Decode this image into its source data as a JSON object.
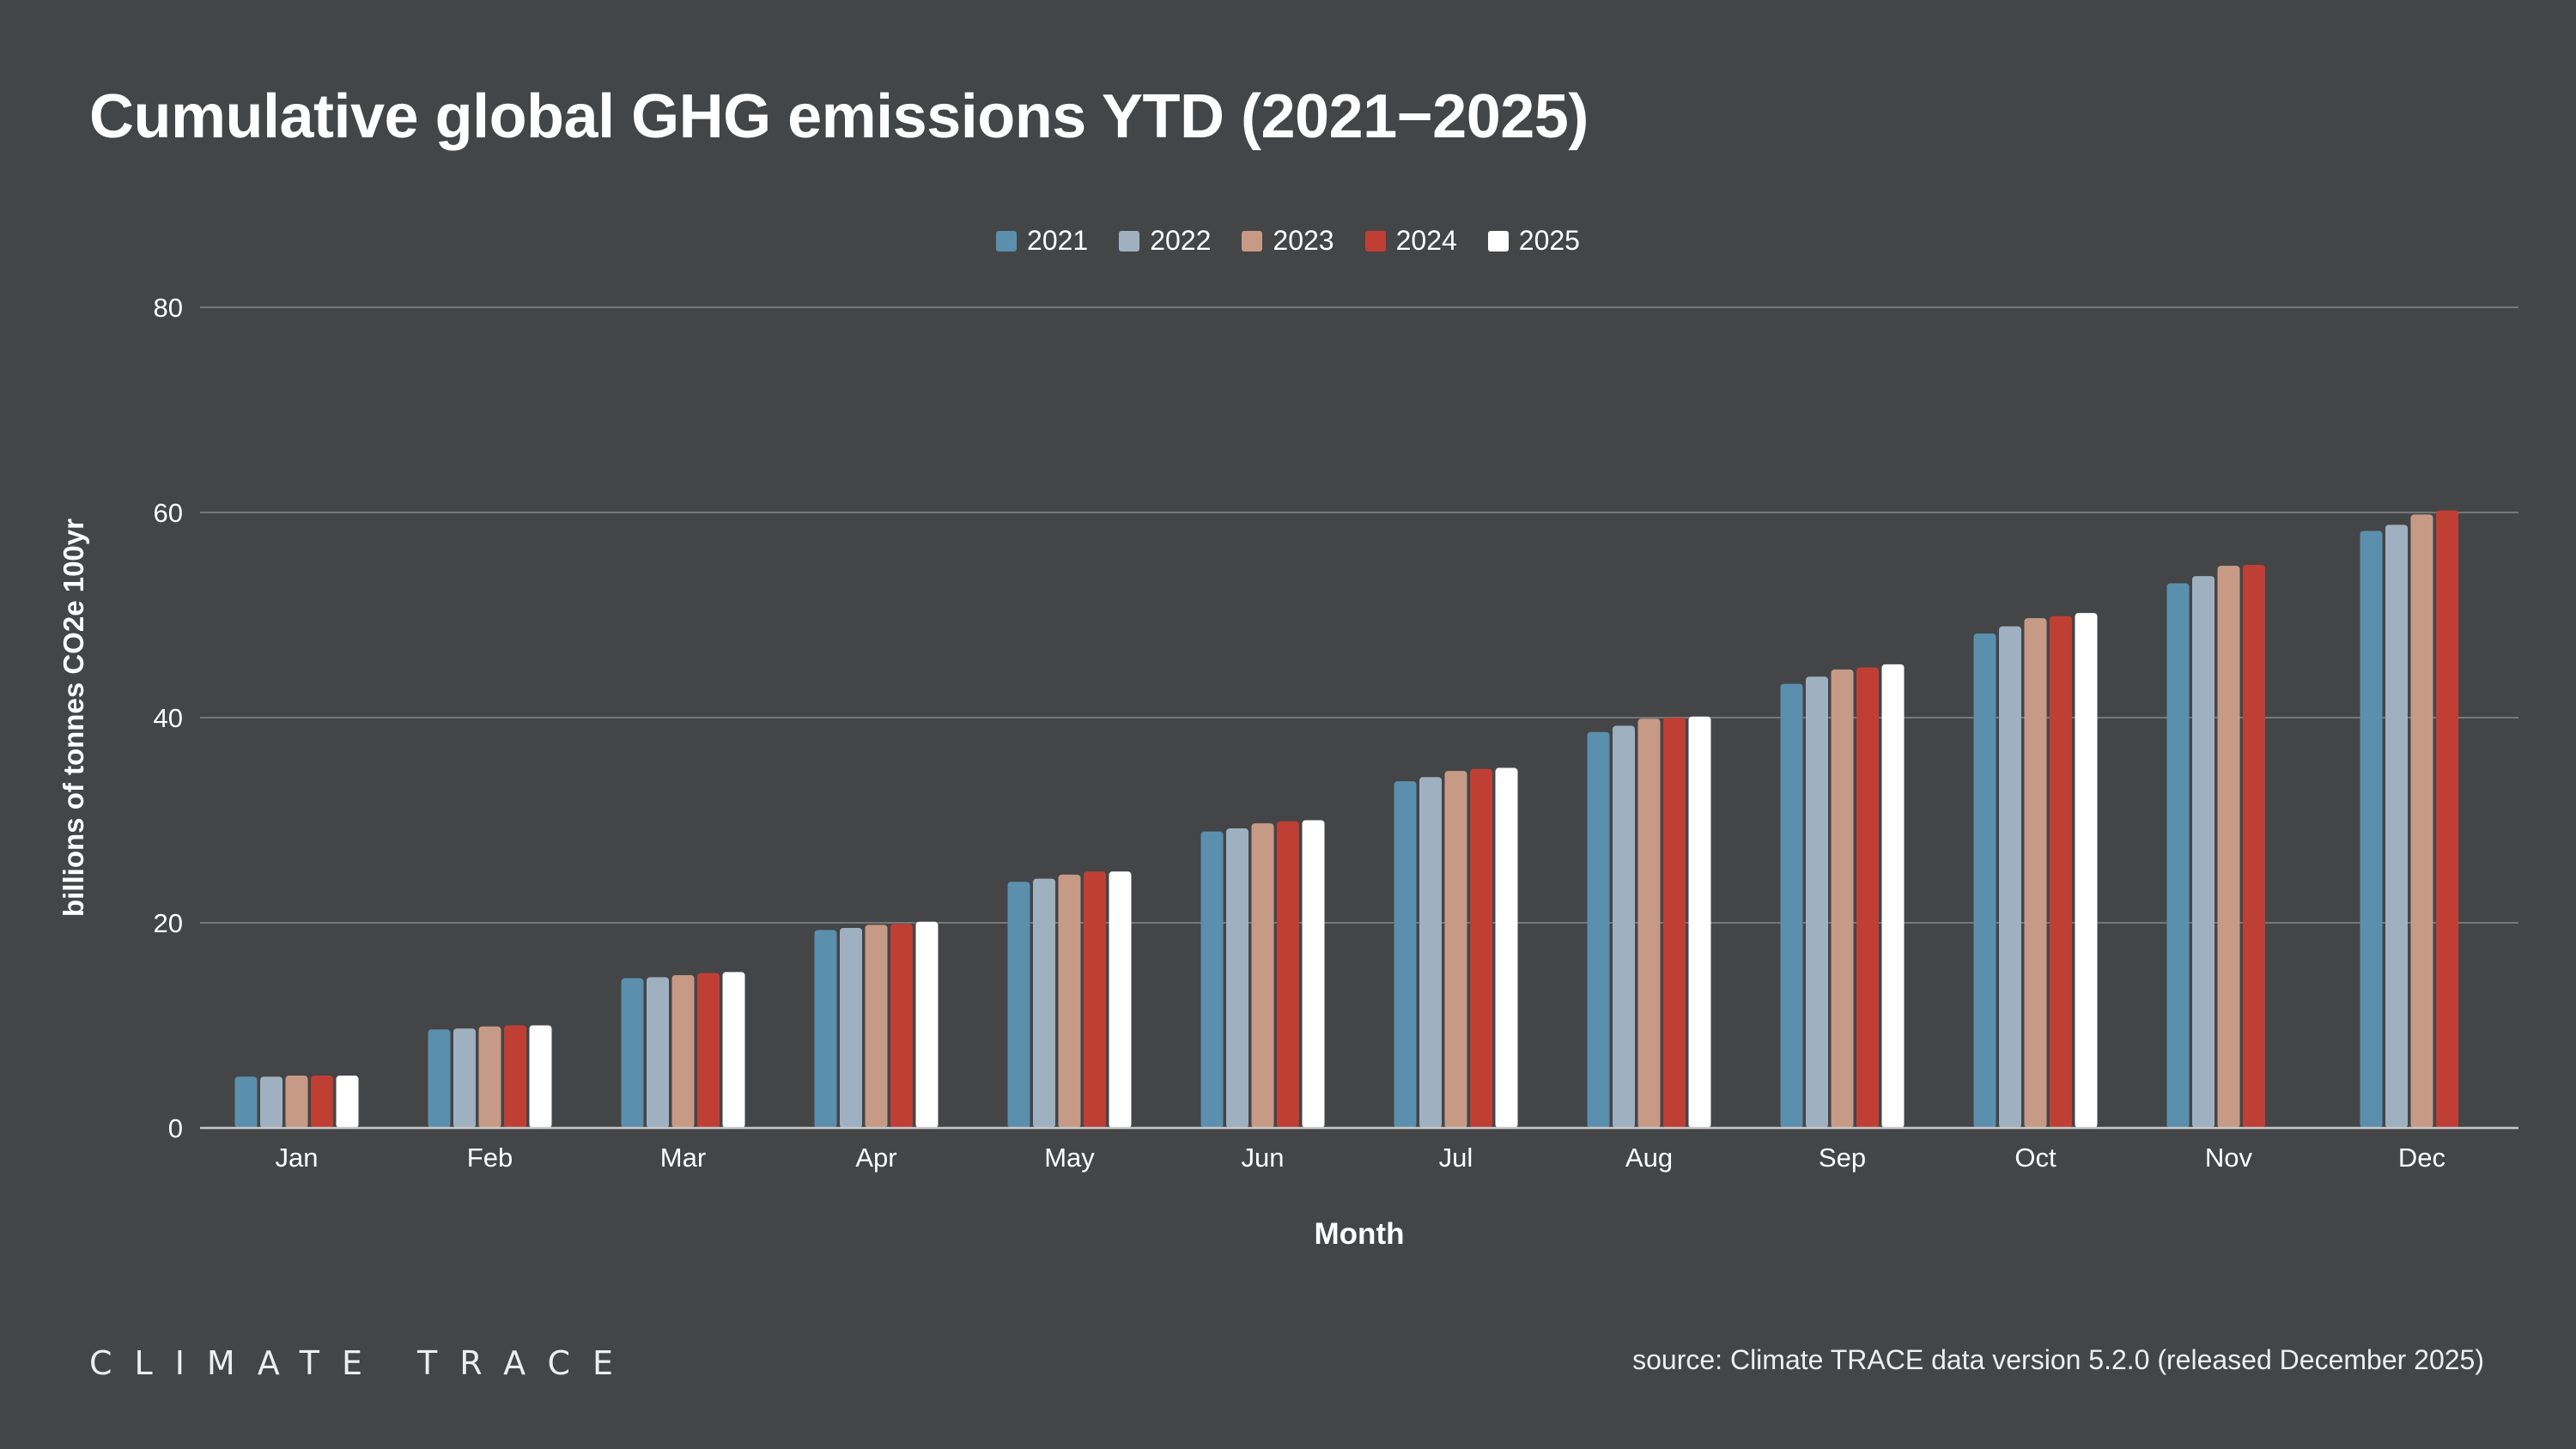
{
  "title": "Cumulative global GHG emissions YTD (2021−2025)",
  "logo_text": "CLIMATE TRACE",
  "source": "source: Climate TRACE data version 5.2.0 (released December 2025)",
  "chart_data": {
    "type": "bar",
    "title": "Cumulative global GHG emissions YTD (2021−2025)",
    "xlabel": "Month",
    "ylabel": "billions of tonnes CO2e 100yr",
    "ylim": [
      0,
      80
    ],
    "yticks": [
      0,
      20,
      40,
      60,
      80
    ],
    "grid": true,
    "legend_position": "top",
    "categories": [
      "Jan",
      "Feb",
      "Mar",
      "Apr",
      "May",
      "Jun",
      "Jul",
      "Aug",
      "Sep",
      "Oct",
      "Nov",
      "Dec"
    ],
    "series": [
      {
        "name": "2021",
        "color": "#5b8fae",
        "values": [
          5.0,
          9.6,
          14.6,
          19.3,
          24.0,
          28.9,
          33.8,
          38.6,
          43.3,
          48.2,
          53.1,
          58.2
        ]
      },
      {
        "name": "2022",
        "color": "#9fb0c0",
        "values": [
          5.0,
          9.7,
          14.7,
          19.5,
          24.3,
          29.2,
          34.2,
          39.2,
          44.0,
          48.9,
          53.8,
          58.8
        ]
      },
      {
        "name": "2023",
        "color": "#c79a86",
        "values": [
          5.1,
          9.9,
          14.9,
          19.8,
          24.7,
          29.7,
          34.8,
          39.9,
          44.7,
          49.7,
          54.8,
          59.8
        ]
      },
      {
        "name": "2024",
        "color": "#bf3f35",
        "values": [
          5.1,
          10.0,
          15.1,
          19.9,
          25.0,
          29.9,
          35.0,
          40.0,
          44.9,
          49.9,
          54.9,
          60.2
        ]
      },
      {
        "name": "2025",
        "color": "#ffffff",
        "values": [
          5.1,
          10.0,
          15.2,
          20.1,
          25.0,
          30.0,
          35.1,
          40.1,
          45.2,
          50.2,
          null,
          null
        ]
      }
    ]
  },
  "colors": {
    "background": "#444547",
    "grid": "#75777a",
    "axis": "#c8c8c8"
  }
}
